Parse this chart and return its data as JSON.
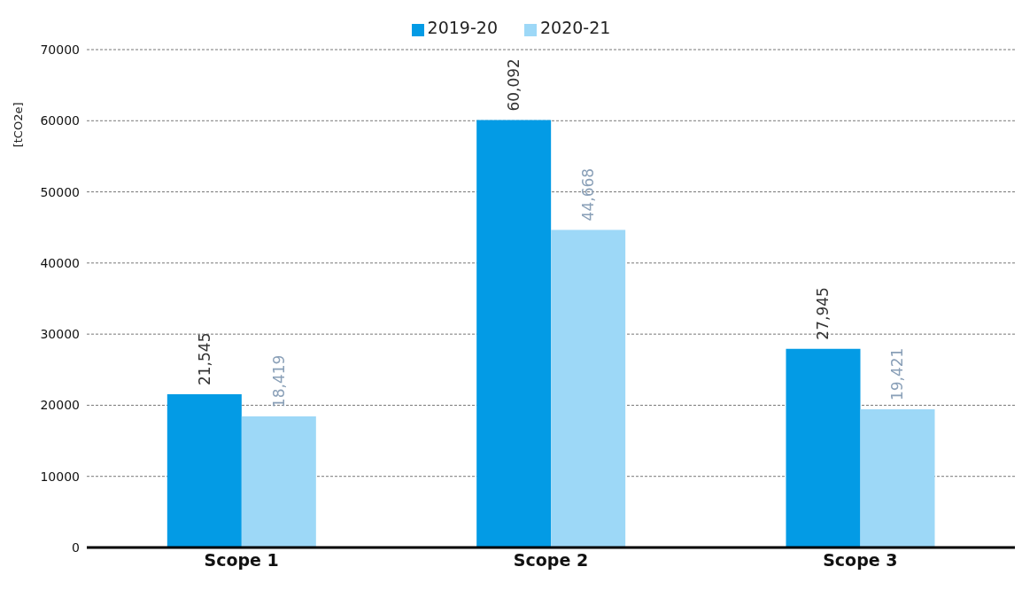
{
  "chart_data": {
    "type": "bar",
    "ylabel": "[tCO2e]",
    "categories": [
      "Scope 1",
      "Scope 2",
      "Scope 3"
    ],
    "series": [
      {
        "name": "2019-20",
        "color": "#039be5",
        "values": [
          21545,
          60092,
          27945
        ],
        "value_labels": [
          "21,545",
          "60,092",
          "27,945"
        ]
      },
      {
        "name": "2020-21",
        "color": "#9dd8f7",
        "values": [
          18419,
          44668,
          19421
        ],
        "value_labels": [
          "18,419",
          "44,668",
          "19,421"
        ]
      }
    ],
    "ylim": [
      0,
      70000
    ],
    "yticks": [
      0,
      10000,
      20000,
      30000,
      40000,
      50000,
      60000,
      70000
    ],
    "grid": "y",
    "legend": "top"
  }
}
